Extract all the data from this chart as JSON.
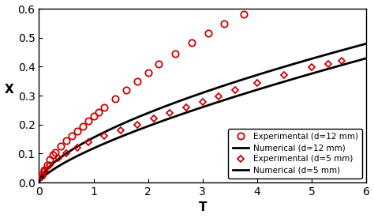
{
  "title": "",
  "xlabel": "T",
  "ylabel": "X",
  "xlim": [
    0,
    6
  ],
  "ylim": [
    0,
    0.6
  ],
  "xticks": [
    0,
    1,
    2,
    3,
    4,
    5,
    6
  ],
  "yticks": [
    0,
    0.1,
    0.2,
    0.3,
    0.4,
    0.5,
    0.6
  ],
  "num_d12_scale": 0.155,
  "num_d12_power": 0.63,
  "num_d5_scale": 0.118,
  "num_d5_power": 0.72,
  "exp_d12_T": [
    0.05,
    0.1,
    0.15,
    0.2,
    0.25,
    0.3,
    0.4,
    0.5,
    0.6,
    0.7,
    0.8,
    0.9,
    1.0,
    1.1,
    1.2,
    1.4,
    1.6,
    1.8,
    2.0,
    2.2,
    2.5,
    2.8,
    3.1,
    3.4,
    3.75
  ],
  "exp_d12_X": [
    0.025,
    0.045,
    0.06,
    0.08,
    0.095,
    0.105,
    0.125,
    0.145,
    0.16,
    0.178,
    0.195,
    0.212,
    0.228,
    0.244,
    0.26,
    0.29,
    0.32,
    0.35,
    0.378,
    0.408,
    0.445,
    0.482,
    0.515,
    0.548,
    0.582
  ],
  "exp_d5_T": [
    0.05,
    0.1,
    0.2,
    0.35,
    0.5,
    0.7,
    0.9,
    1.2,
    1.5,
    1.8,
    2.1,
    2.4,
    2.7,
    3.0,
    3.3,
    3.6,
    4.0,
    4.5,
    5.0,
    5.3,
    5.55
  ],
  "exp_d5_X": [
    0.02,
    0.038,
    0.06,
    0.085,
    0.1,
    0.12,
    0.138,
    0.16,
    0.18,
    0.2,
    0.22,
    0.24,
    0.258,
    0.278,
    0.298,
    0.318,
    0.345,
    0.372,
    0.398,
    0.408,
    0.42
  ],
  "line_color": "#000000",
  "exp_color": "#cc0000",
  "bg_color": "#ffffff",
  "legend_loc": "lower right",
  "fontsize_label": 11,
  "fontsize_tick": 10,
  "fontsize_legend": 7.5,
  "line_width": 2.0,
  "marker_size_d12": 6,
  "marker_size_d5": 4.5,
  "marker_edge_width": 1.3
}
